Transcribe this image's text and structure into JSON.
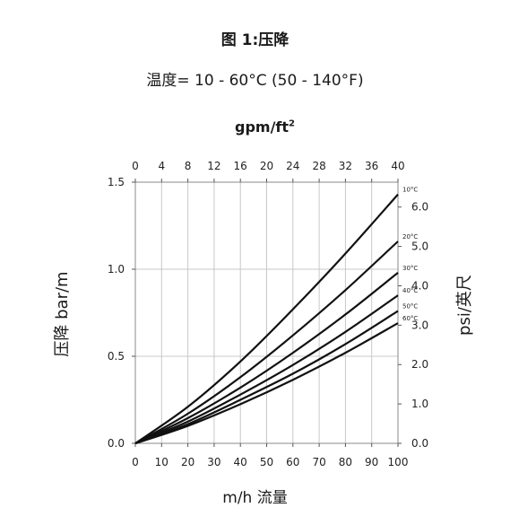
{
  "title": "图 1:压降",
  "subtitle": "温度= 10 - 60°C (50 - 140°F)",
  "chart_data": {
    "type": "line",
    "title": "图 1:压降",
    "subtitle": "温度= 10 - 60°C (50 - 140°F)",
    "xlabel": "m/h 流量",
    "x2label": "gpm/ft",
    "x2label_sup": "2",
    "ylabel": "压降 bar/m",
    "y2label": "psi/英尺",
    "xlim": [
      0,
      100
    ],
    "ylim": [
      0,
      1.5
    ],
    "x_ticks": [
      0,
      10,
      20,
      30,
      40,
      50,
      60,
      70,
      80,
      90,
      100
    ],
    "x2_ticks": [
      "0",
      "4",
      "8",
      "12",
      "16",
      "20",
      "24",
      "28",
      "32",
      "36",
      "40"
    ],
    "y_ticks": [
      "0.0",
      "0.5",
      "1.0",
      "1.5"
    ],
    "y2_ticks": [
      {
        "label": "0.0",
        "psi": 0
      },
      {
        "label": "1.0",
        "psi": 1
      },
      {
        "label": "2.0",
        "psi": 2
      },
      {
        "label": "3.0",
        "psi": 3
      },
      {
        "label": "4.0",
        "psi": 4
      },
      {
        "label": "5.0",
        "psi": 5
      },
      {
        "label": "6.0",
        "psi": 6
      }
    ],
    "series": [
      {
        "name": "10°C",
        "x": [
          0,
          20,
          40,
          60,
          80,
          100
        ],
        "y": [
          0,
          0.21,
          0.47,
          0.77,
          1.09,
          1.43
        ]
      },
      {
        "name": "20°C",
        "x": [
          0,
          20,
          40,
          60,
          80,
          100
        ],
        "y": [
          0,
          0.17,
          0.38,
          0.62,
          0.88,
          1.16
        ]
      },
      {
        "name": "30°C",
        "x": [
          0,
          20,
          40,
          60,
          80,
          100
        ],
        "y": [
          0,
          0.145,
          0.32,
          0.52,
          0.74,
          0.98
        ]
      },
      {
        "name": "40°C",
        "x": [
          0,
          20,
          40,
          60,
          80,
          100
        ],
        "y": [
          0,
          0.125,
          0.28,
          0.45,
          0.64,
          0.85
        ]
      },
      {
        "name": "50°C",
        "x": [
          0,
          20,
          40,
          60,
          80,
          100
        ],
        "y": [
          0,
          0.11,
          0.25,
          0.4,
          0.57,
          0.76
        ]
      },
      {
        "name": "60°C",
        "x": [
          0,
          20,
          40,
          60,
          80,
          100
        ],
        "y": [
          0,
          0.1,
          0.225,
          0.365,
          0.52,
          0.69
        ]
      }
    ],
    "grid": true,
    "legend": "right"
  }
}
